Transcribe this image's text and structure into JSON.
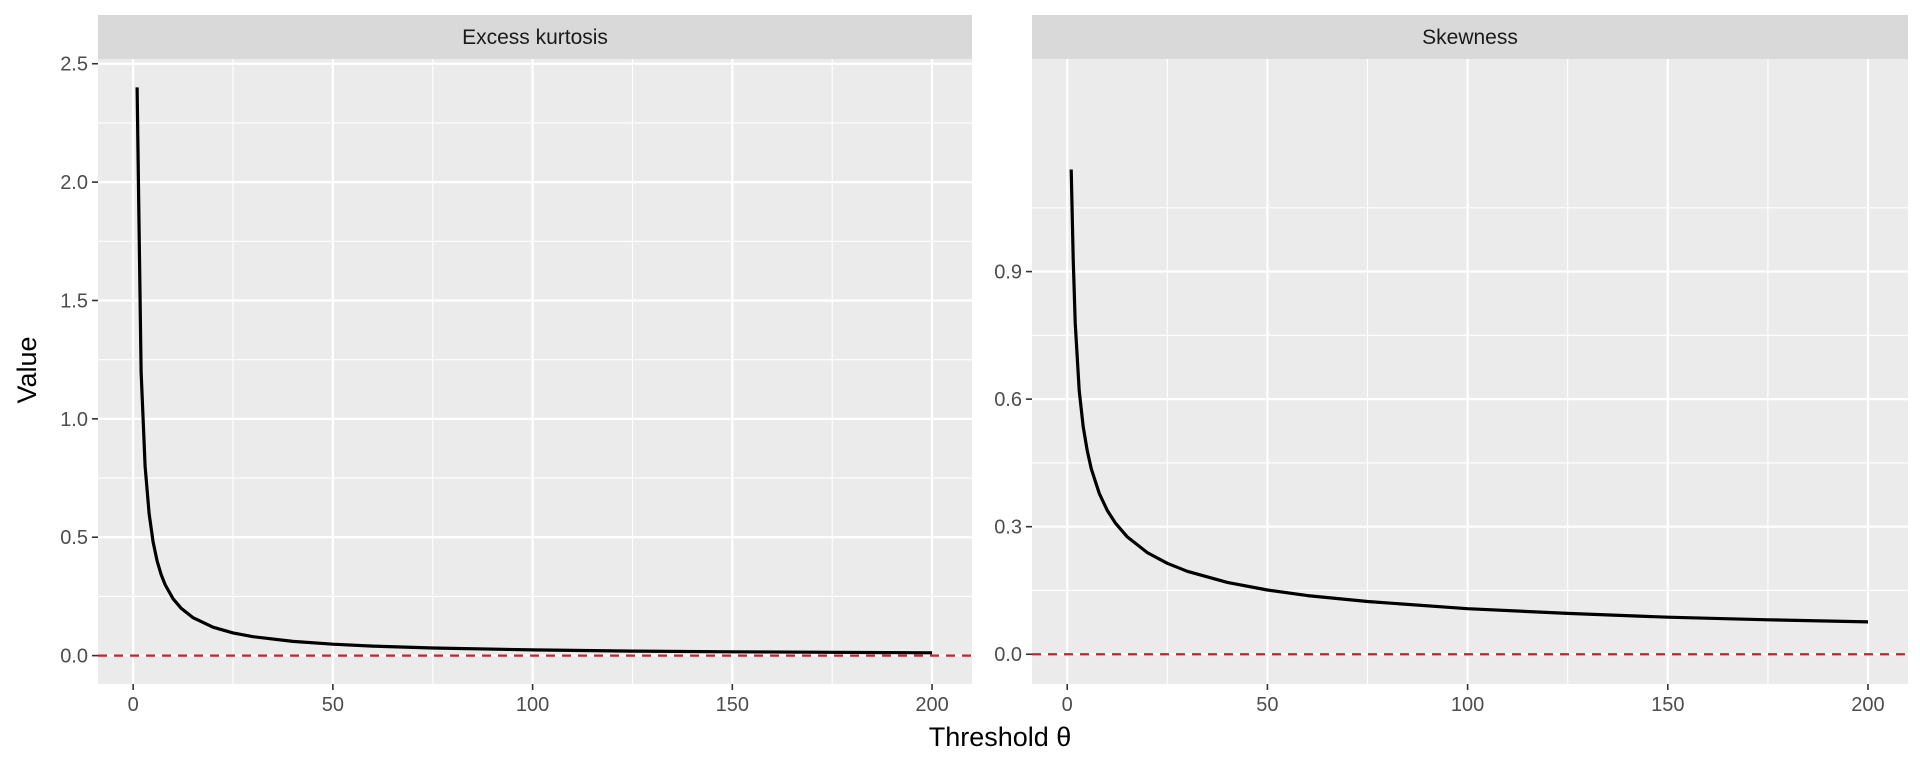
{
  "chart_data": {
    "type": "line",
    "xlabel": "Threshold θ",
    "ylabel": "Value",
    "reference_line": {
      "y": 0,
      "style": "dashed",
      "color": "#c0272d"
    },
    "colors": {
      "panel_bg": "#ebebeb",
      "strip_bg": "#d9d9d9",
      "grid": "#ffffff",
      "line": "#000000"
    },
    "panels": [
      {
        "title": "Excess kurtosis",
        "xlim": [
          -8.8,
          210
        ],
        "ylim": [
          -0.12,
          2.52
        ],
        "x_ticks": [
          0,
          50,
          100,
          150,
          200
        ],
        "x_tick_labels": [
          "0",
          "50",
          "100",
          "150",
          "200"
        ],
        "y_ticks": [
          0,
          0.5,
          1,
          1.5,
          2,
          2.5
        ],
        "y_tick_labels": [
          "0.0",
          "0.5",
          "1.0",
          "1.5",
          "2.0",
          "2.5"
        ],
        "series": [
          {
            "x": [
              1,
              2,
              3,
              4,
              5,
              6,
              7,
              8,
              10,
              12,
              15,
              20,
              25,
              30,
              40,
              50,
              60,
              75,
              100,
              125,
              150,
              175,
              200
            ],
            "y": [
              2.4,
              1.2,
              0.8,
              0.6,
              0.48,
              0.4,
              0.343,
              0.3,
              0.24,
              0.2,
              0.16,
              0.12,
              0.096,
              0.08,
              0.06,
              0.048,
              0.04,
              0.032,
              0.024,
              0.019,
              0.016,
              0.014,
              0.012
            ]
          }
        ]
      },
      {
        "title": "Skewness",
        "xlim": [
          -8.8,
          210
        ],
        "ylim": [
          -0.07,
          1.4
        ],
        "x_ticks": [
          0,
          50,
          100,
          150,
          200
        ],
        "x_tick_labels": [
          "0",
          "50",
          "100",
          "150",
          "200"
        ],
        "y_ticks": [
          0,
          0.3,
          0.6,
          0.9
        ],
        "y_tick_labels": [
          "0.0",
          "0.3",
          "0.6",
          "0.9"
        ],
        "series": [
          {
            "x": [
              1,
              1.5,
              2,
              3,
              4,
              5,
              6,
              8,
              10,
              12,
              15,
              20,
              25,
              30,
              40,
              50,
              60,
              75,
              100,
              125,
              150,
              175,
              200
            ],
            "y": [
              1.14,
              0.93,
              0.78,
              0.62,
              0.535,
              0.478,
              0.436,
              0.378,
              0.338,
              0.309,
              0.276,
              0.239,
              0.214,
              0.195,
              0.169,
              0.151,
              0.138,
              0.124,
              0.107,
              0.096,
              0.087,
              0.081,
              0.076
            ]
          }
        ]
      }
    ]
  }
}
